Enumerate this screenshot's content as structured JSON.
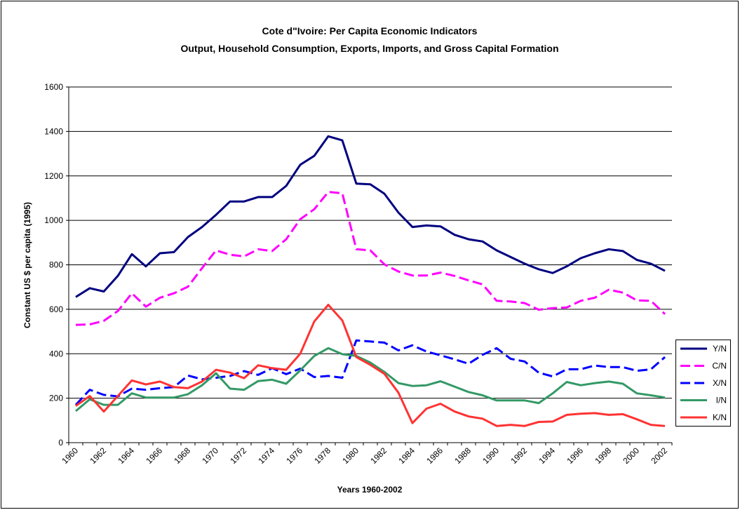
{
  "chart_data": {
    "type": "line",
    "title": "Cote d\"Ivoire: Per Capita Economic Indicators",
    "subtitle": "Output, Household Consumption, Exports, Imports, and Gross Capital Formation",
    "x_label": "Years 1960-2002",
    "y_label": "Constant US $ per capita (1995)",
    "categories": [
      "1960",
      null,
      "1962",
      null,
      "1964",
      null,
      "1966",
      null,
      "1968",
      null,
      "1970",
      null,
      "1972",
      null,
      "1974",
      null,
      "1976",
      null,
      "1978",
      null,
      "1980",
      null,
      "1982",
      null,
      "1984",
      null,
      "1986",
      null,
      "1988",
      null,
      "1990",
      null,
      "1992",
      null,
      "1994",
      null,
      "1996",
      null,
      "1998",
      null,
      "2000",
      null,
      "2002"
    ],
    "ylim": [
      0,
      1600
    ],
    "yticks": [
      0,
      200,
      400,
      600,
      800,
      1000,
      1200,
      1400,
      1600
    ],
    "grid": true,
    "legend": "right",
    "series": [
      {
        "name": "Y/N",
        "color": "#000080",
        "dash": false,
        "values": [
          655,
          695,
          680,
          750,
          848,
          793,
          852,
          857,
          925,
          970,
          1025,
          1085,
          1085,
          1105,
          1105,
          1155,
          1250,
          1290,
          1378,
          1360,
          1165,
          1162,
          1120,
          1035,
          970,
          977,
          973,
          935,
          915,
          905,
          865,
          835,
          805,
          780,
          763,
          793,
          830,
          852,
          870,
          862,
          822,
          805,
          773
        ]
      },
      {
        "name": "C/N",
        "color": "#ff00ff",
        "dash": true,
        "values": [
          530,
          532,
          548,
          592,
          672,
          612,
          652,
          672,
          702,
          785,
          865,
          845,
          838,
          870,
          862,
          915,
          1005,
          1050,
          1128,
          1122,
          870,
          865,
          802,
          770,
          752,
          752,
          765,
          750,
          730,
          712,
          638,
          635,
          628,
          598,
          605,
          608,
          638,
          652,
          688,
          675,
          640,
          638,
          578
        ]
      },
      {
        "name": "X/N",
        "color": "#0000ff",
        "dash": true,
        "values": [
          170,
          238,
          215,
          208,
          243,
          238,
          245,
          250,
          302,
          285,
          292,
          300,
          322,
          305,
          335,
          308,
          333,
          295,
          300,
          292,
          460,
          455,
          450,
          415,
          438,
          410,
          393,
          375,
          355,
          395,
          425,
          377,
          365,
          315,
          298,
          330,
          330,
          347,
          340,
          340,
          323,
          330,
          385
        ]
      },
      {
        "name": "I/N",
        "color": "#339966",
        "dash": false,
        "values": [
          142,
          195,
          170,
          170,
          222,
          203,
          203,
          203,
          218,
          258,
          312,
          243,
          238,
          277,
          283,
          265,
          325,
          390,
          425,
          398,
          390,
          360,
          318,
          268,
          255,
          258,
          276,
          252,
          228,
          213,
          190,
          190,
          190,
          178,
          222,
          273,
          258,
          268,
          275,
          265,
          222,
          213,
          203
        ]
      },
      {
        "name": "K/N",
        "color": "#ff3333",
        "dash": false,
        "values": [
          165,
          210,
          140,
          210,
          280,
          262,
          275,
          250,
          245,
          275,
          328,
          315,
          290,
          348,
          335,
          328,
          400,
          545,
          620,
          550,
          385,
          350,
          310,
          225,
          88,
          153,
          175,
          140,
          118,
          108,
          75,
          80,
          75,
          93,
          95,
          125,
          130,
          133,
          125,
          128,
          105,
          80,
          75
        ]
      }
    ]
  }
}
